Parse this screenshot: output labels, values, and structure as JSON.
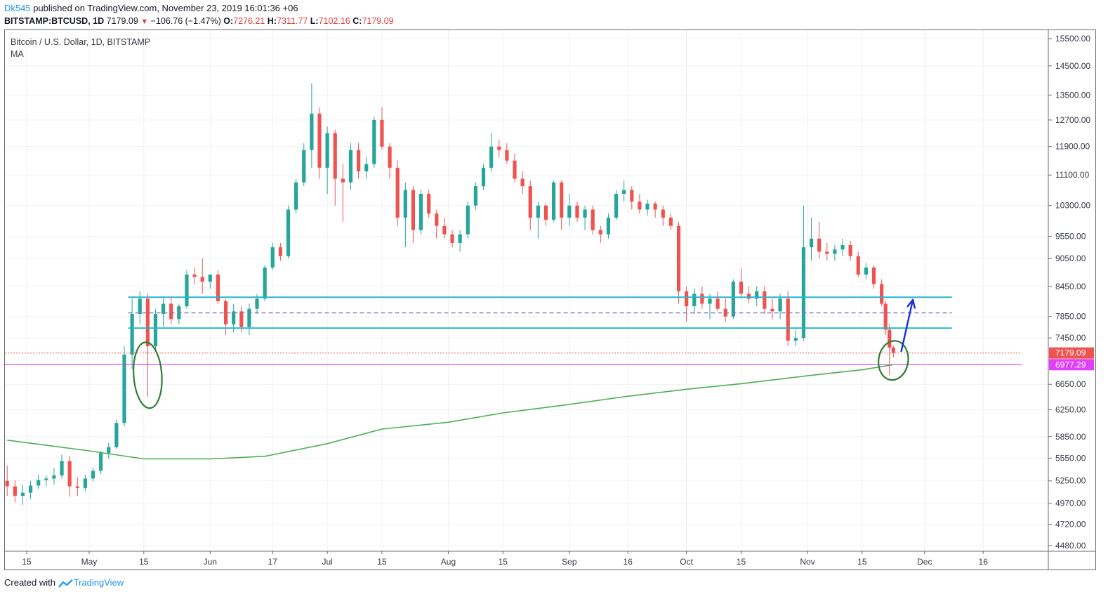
{
  "header": {
    "author": "Dk545",
    "published_text": " published on TradingView.com, November 23, 2019 16:01:36 +06",
    "symbol": "BITSTAMP:BTCUSD, 1D",
    "last": "7179.09",
    "change": "−106.76 (−1.47%)",
    "open_label": "O:",
    "open": "7276.21",
    "high_label": "H:",
    "high": "7311.77",
    "low_label": "L:",
    "low": "7102.16",
    "close_label": "C:",
    "close": "7179.09"
  },
  "legend": {
    "title": "Bitcoin / U.S. Dollar, 1D, BITSTAMP",
    "indicator": "MA"
  },
  "footer": {
    "created_with": "Created with",
    "brand": "TradingView"
  },
  "colors": {
    "up": "#26a69a",
    "down": "#ef5350",
    "ma": "#4caf50",
    "support": "#26b5c8",
    "pink": "#e040fb",
    "arrow": "#1a2de0",
    "circle": "#2e7d32"
  },
  "chart_data": {
    "type": "candlestick",
    "title": "Bitcoin / U.S. Dollar, 1D, BITSTAMP",
    "y_scale": "log",
    "ylim": [
      4400,
      15800
    ],
    "y_ticks": [
      "15500.00",
      "14500.00",
      "13500.00",
      "12700.00",
      "11900.00",
      "11100.00",
      "10300.00",
      "9550.00",
      "9050.00",
      "8450.00",
      "7850.00",
      "7450.00",
      "6650.00",
      "6250.00",
      "5850.00",
      "5550.00",
      "5250.00",
      "4970.00",
      "4720.00",
      "4480.00"
    ],
    "x_labels": [
      {
        "label": "15",
        "date": "2019-04-15"
      },
      {
        "label": "May",
        "date": "2019-05-01"
      },
      {
        "label": "15",
        "date": "2019-05-15"
      },
      {
        "label": "Jun",
        "date": "2019-06-01"
      },
      {
        "label": "17",
        "date": "2019-06-17"
      },
      {
        "label": "Jul",
        "date": "2019-07-01"
      },
      {
        "label": "15",
        "date": "2019-07-15"
      },
      {
        "label": "Aug",
        "date": "2019-08-01"
      },
      {
        "label": "15",
        "date": "2019-08-15"
      },
      {
        "label": "Sep",
        "date": "2019-09-01"
      },
      {
        "label": "16",
        "date": "2019-09-16"
      },
      {
        "label": "Oct",
        "date": "2019-10-01"
      },
      {
        "label": "15",
        "date": "2019-10-15"
      },
      {
        "label": "Nov",
        "date": "2019-11-01"
      },
      {
        "label": "15",
        "date": "2019-11-15"
      },
      {
        "label": "Dec",
        "date": "2019-12-01"
      },
      {
        "label": "16",
        "date": "2019-12-16"
      }
    ],
    "price_labels": [
      {
        "value": "7179.09",
        "color": "#ef5350"
      },
      {
        "value": "6977.29",
        "color": "#e040fb"
      }
    ],
    "horizontal_lines": [
      {
        "price": 8230,
        "style": "solid",
        "color": "#26b5c8",
        "from": "2019-05-11",
        "to": "2019-12-08"
      },
      {
        "price": 7630,
        "style": "solid",
        "color": "#26b5c8",
        "from": "2019-05-11",
        "to": "2019-12-08"
      },
      {
        "price": 7920,
        "style": "dashed",
        "color": "#7e72c8",
        "from": "2019-05-11",
        "to": "2019-12-08"
      },
      {
        "price": 7179.09,
        "style": "dotted",
        "color": "#ef5350",
        "from": "2019-04-10",
        "to": "2019-12-26"
      },
      {
        "price": 6977.29,
        "style": "solid",
        "color": "#e040fb",
        "from": "2019-04-10",
        "to": "2019-12-26"
      }
    ],
    "ma_series": [
      {
        "date": "2019-04-10",
        "value": 5800
      },
      {
        "date": "2019-05-01",
        "value": 5650
      },
      {
        "date": "2019-05-15",
        "value": 5540
      },
      {
        "date": "2019-06-01",
        "value": 5540
      },
      {
        "date": "2019-06-15",
        "value": 5575
      },
      {
        "date": "2019-07-01",
        "value": 5750
      },
      {
        "date": "2019-07-15",
        "value": 5960
      },
      {
        "date": "2019-08-01",
        "value": 6060
      },
      {
        "date": "2019-08-15",
        "value": 6200
      },
      {
        "date": "2019-09-01",
        "value": 6330
      },
      {
        "date": "2019-09-15",
        "value": 6450
      },
      {
        "date": "2019-10-01",
        "value": 6570
      },
      {
        "date": "2019-10-15",
        "value": 6660
      },
      {
        "date": "2019-11-01",
        "value": 6790
      },
      {
        "date": "2019-11-15",
        "value": 6890
      },
      {
        "date": "2019-11-23",
        "value": 6977
      }
    ],
    "annotations": [
      {
        "type": "ellipse",
        "center_date": "2019-05-16",
        "center_price": 6800,
        "color": "#2e7d32"
      },
      {
        "type": "ellipse",
        "center_date": "2019-11-23",
        "center_price": 7050,
        "color": "#2e7d32"
      },
      {
        "type": "arrow",
        "from_date": "2019-11-25",
        "from_price": 7200,
        "to_date": "2019-11-28",
        "to_price": 8180,
        "color": "#1a2de0"
      }
    ],
    "ohlc": [
      {
        "d": "2019-04-10",
        "o": 5250,
        "h": 5450,
        "l": 5060,
        "c": 5180
      },
      {
        "d": "2019-04-12",
        "o": 5180,
        "h": 5260,
        "l": 4980,
        "c": 5060
      },
      {
        "d": "2019-04-14",
        "o": 5060,
        "h": 5200,
        "l": 4950,
        "c": 5100
      },
      {
        "d": "2019-04-16",
        "o": 5100,
        "h": 5250,
        "l": 5020,
        "c": 5190
      },
      {
        "d": "2019-04-18",
        "o": 5190,
        "h": 5330,
        "l": 5150,
        "c": 5260
      },
      {
        "d": "2019-04-20",
        "o": 5260,
        "h": 5320,
        "l": 5180,
        "c": 5280
      },
      {
        "d": "2019-04-22",
        "o": 5280,
        "h": 5420,
        "l": 5200,
        "c": 5320
      },
      {
        "d": "2019-04-24",
        "o": 5320,
        "h": 5600,
        "l": 5280,
        "c": 5510
      },
      {
        "d": "2019-04-26",
        "o": 5510,
        "h": 5580,
        "l": 5050,
        "c": 5180
      },
      {
        "d": "2019-04-28",
        "o": 5180,
        "h": 5300,
        "l": 5060,
        "c": 5160
      },
      {
        "d": "2019-04-30",
        "o": 5160,
        "h": 5330,
        "l": 5120,
        "c": 5280
      },
      {
        "d": "2019-05-02",
        "o": 5280,
        "h": 5420,
        "l": 5240,
        "c": 5380
      },
      {
        "d": "2019-05-04",
        "o": 5380,
        "h": 5650,
        "l": 5340,
        "c": 5620
      },
      {
        "d": "2019-05-06",
        "o": 5620,
        "h": 5760,
        "l": 5540,
        "c": 5700
      },
      {
        "d": "2019-05-08",
        "o": 5700,
        "h": 6100,
        "l": 5680,
        "c": 6050
      },
      {
        "d": "2019-05-10",
        "o": 6050,
        "h": 7300,
        "l": 6000,
        "c": 7150
      },
      {
        "d": "2019-05-12",
        "o": 7150,
        "h": 8200,
        "l": 6900,
        "c": 7900
      },
      {
        "d": "2019-05-14",
        "o": 7900,
        "h": 8350,
        "l": 7700,
        "c": 8200
      },
      {
        "d": "2019-05-16",
        "o": 8200,
        "h": 8300,
        "l": 6450,
        "c": 7300
      },
      {
        "d": "2019-05-18",
        "o": 7300,
        "h": 8000,
        "l": 7200,
        "c": 7900
      },
      {
        "d": "2019-05-20",
        "o": 7900,
        "h": 8250,
        "l": 7650,
        "c": 8100
      },
      {
        "d": "2019-05-22",
        "o": 8100,
        "h": 8250,
        "l": 7700,
        "c": 7800
      },
      {
        "d": "2019-05-24",
        "o": 7800,
        "h": 8100,
        "l": 7700,
        "c": 8050
      },
      {
        "d": "2019-05-26",
        "o": 8050,
        "h": 8800,
        "l": 8000,
        "c": 8700
      },
      {
        "d": "2019-05-28",
        "o": 8700,
        "h": 8850,
        "l": 8500,
        "c": 8650
      },
      {
        "d": "2019-05-30",
        "o": 8650,
        "h": 9050,
        "l": 8300,
        "c": 8550
      },
      {
        "d": "2019-06-01",
        "o": 8550,
        "h": 8700,
        "l": 8400,
        "c": 8700
      },
      {
        "d": "2019-06-03",
        "o": 8700,
        "h": 8800,
        "l": 8100,
        "c": 8150
      },
      {
        "d": "2019-06-05",
        "o": 8150,
        "h": 8200,
        "l": 7500,
        "c": 7700
      },
      {
        "d": "2019-06-07",
        "o": 7700,
        "h": 8100,
        "l": 7550,
        "c": 7950
      },
      {
        "d": "2019-06-09",
        "o": 7950,
        "h": 8050,
        "l": 7550,
        "c": 7650
      },
      {
        "d": "2019-06-11",
        "o": 7650,
        "h": 8100,
        "l": 7500,
        "c": 8000
      },
      {
        "d": "2019-06-13",
        "o": 8000,
        "h": 8300,
        "l": 7900,
        "c": 8200
      },
      {
        "d": "2019-06-15",
        "o": 8200,
        "h": 8900,
        "l": 8150,
        "c": 8850
      },
      {
        "d": "2019-06-17",
        "o": 8850,
        "h": 9400,
        "l": 8800,
        "c": 9300
      },
      {
        "d": "2019-06-19",
        "o": 9300,
        "h": 9400,
        "l": 9000,
        "c": 9100
      },
      {
        "d": "2019-06-21",
        "o": 9100,
        "h": 10300,
        "l": 9050,
        "c": 10200
      },
      {
        "d": "2019-06-23",
        "o": 10200,
        "h": 11000,
        "l": 10100,
        "c": 10900
      },
      {
        "d": "2019-06-25",
        "o": 10900,
        "h": 12000,
        "l": 10800,
        "c": 11800
      },
      {
        "d": "2019-06-27",
        "o": 11800,
        "h": 13900,
        "l": 11300,
        "c": 12900
      },
      {
        "d": "2019-06-29",
        "o": 12900,
        "h": 13100,
        "l": 11000,
        "c": 11300
      },
      {
        "d": "2019-07-01",
        "o": 11300,
        "h": 12500,
        "l": 10600,
        "c": 12300
      },
      {
        "d": "2019-07-03",
        "o": 12300,
        "h": 12400,
        "l": 10300,
        "c": 11000
      },
      {
        "d": "2019-07-05",
        "o": 11000,
        "h": 11400,
        "l": 9900,
        "c": 10900
      },
      {
        "d": "2019-07-07",
        "o": 10900,
        "h": 12000,
        "l": 10700,
        "c": 11800
      },
      {
        "d": "2019-07-09",
        "o": 11800,
        "h": 12000,
        "l": 11000,
        "c": 11200
      },
      {
        "d": "2019-07-11",
        "o": 11200,
        "h": 11600,
        "l": 11000,
        "c": 11400
      },
      {
        "d": "2019-07-13",
        "o": 11400,
        "h": 12800,
        "l": 11300,
        "c": 12700
      },
      {
        "d": "2019-07-15",
        "o": 12700,
        "h": 13100,
        "l": 11800,
        "c": 11900
      },
      {
        "d": "2019-07-17",
        "o": 11900,
        "h": 12000,
        "l": 11000,
        "c": 11300
      },
      {
        "d": "2019-07-19",
        "o": 11300,
        "h": 11500,
        "l": 9800,
        "c": 10000
      },
      {
        "d": "2019-07-21",
        "o": 10000,
        "h": 10900,
        "l": 9300,
        "c": 10700
      },
      {
        "d": "2019-07-23",
        "o": 10700,
        "h": 10800,
        "l": 9400,
        "c": 9700
      },
      {
        "d": "2019-07-25",
        "o": 9700,
        "h": 10700,
        "l": 9600,
        "c": 10600
      },
      {
        "d": "2019-07-27",
        "o": 10600,
        "h": 10700,
        "l": 10000,
        "c": 10100
      },
      {
        "d": "2019-07-29",
        "o": 10100,
        "h": 10200,
        "l": 9500,
        "c": 9800
      },
      {
        "d": "2019-07-31",
        "o": 9800,
        "h": 10000,
        "l": 9500,
        "c": 9600
      },
      {
        "d": "2019-08-02",
        "o": 9600,
        "h": 9700,
        "l": 9300,
        "c": 9400
      },
      {
        "d": "2019-08-04",
        "o": 9400,
        "h": 9700,
        "l": 9200,
        "c": 9600
      },
      {
        "d": "2019-08-06",
        "o": 9600,
        "h": 10400,
        "l": 9500,
        "c": 10300
      },
      {
        "d": "2019-08-08",
        "o": 10300,
        "h": 10900,
        "l": 10200,
        "c": 10800
      },
      {
        "d": "2019-08-10",
        "o": 10800,
        "h": 11400,
        "l": 10700,
        "c": 11300
      },
      {
        "d": "2019-08-12",
        "o": 11300,
        "h": 12300,
        "l": 11200,
        "c": 11900
      },
      {
        "d": "2019-08-14",
        "o": 11900,
        "h": 12100,
        "l": 11600,
        "c": 11800
      },
      {
        "d": "2019-08-16",
        "o": 11800,
        "h": 12000,
        "l": 11400,
        "c": 11500
      },
      {
        "d": "2019-08-18",
        "o": 11500,
        "h": 11700,
        "l": 10900,
        "c": 11000
      },
      {
        "d": "2019-08-20",
        "o": 11000,
        "h": 11200,
        "l": 10600,
        "c": 10800
      },
      {
        "d": "2019-08-22",
        "o": 10800,
        "h": 10950,
        "l": 9700,
        "c": 10000
      },
      {
        "d": "2019-08-24",
        "o": 10000,
        "h": 10400,
        "l": 9500,
        "c": 10300
      },
      {
        "d": "2019-08-26",
        "o": 10300,
        "h": 10350,
        "l": 9800,
        "c": 9950
      },
      {
        "d": "2019-08-28",
        "o": 9950,
        "h": 10950,
        "l": 9900,
        "c": 10900
      },
      {
        "d": "2019-08-30",
        "o": 10900,
        "h": 10950,
        "l": 9700,
        "c": 10000
      },
      {
        "d": "2019-09-01",
        "o": 10000,
        "h": 10600,
        "l": 9800,
        "c": 10300
      },
      {
        "d": "2019-09-03",
        "o": 10300,
        "h": 10400,
        "l": 9900,
        "c": 10000
      },
      {
        "d": "2019-09-05",
        "o": 10000,
        "h": 10300,
        "l": 9700,
        "c": 10200
      },
      {
        "d": "2019-09-07",
        "o": 10200,
        "h": 10300,
        "l": 9600,
        "c": 9700
      },
      {
        "d": "2019-09-09",
        "o": 9700,
        "h": 9800,
        "l": 9400,
        "c": 9600
      },
      {
        "d": "2019-09-11",
        "o": 9600,
        "h": 10100,
        "l": 9500,
        "c": 10000
      },
      {
        "d": "2019-09-13",
        "o": 10000,
        "h": 10700,
        "l": 9950,
        "c": 10600
      },
      {
        "d": "2019-09-15",
        "o": 10600,
        "h": 10950,
        "l": 10400,
        "c": 10700
      },
      {
        "d": "2019-09-17",
        "o": 10700,
        "h": 10800,
        "l": 10200,
        "c": 10400
      },
      {
        "d": "2019-09-19",
        "o": 10400,
        "h": 10600,
        "l": 10100,
        "c": 10200
      },
      {
        "d": "2019-09-21",
        "o": 10200,
        "h": 10450,
        "l": 10050,
        "c": 10350
      },
      {
        "d": "2019-09-23",
        "o": 10350,
        "h": 10400,
        "l": 10000,
        "c": 10200
      },
      {
        "d": "2019-09-25",
        "o": 10200,
        "h": 10300,
        "l": 9800,
        "c": 10000
      },
      {
        "d": "2019-09-27",
        "o": 10000,
        "h": 10100,
        "l": 9700,
        "c": 9800
      },
      {
        "d": "2019-09-29",
        "o": 9800,
        "h": 9900,
        "l": 8100,
        "c": 8350
      },
      {
        "d": "2019-10-01",
        "o": 8350,
        "h": 8450,
        "l": 7750,
        "c": 8050
      },
      {
        "d": "2019-10-03",
        "o": 8050,
        "h": 8400,
        "l": 7900,
        "c": 8300
      },
      {
        "d": "2019-10-05",
        "o": 8300,
        "h": 8450,
        "l": 8000,
        "c": 8100
      },
      {
        "d": "2019-10-07",
        "o": 8100,
        "h": 8300,
        "l": 7800,
        "c": 8200
      },
      {
        "d": "2019-10-09",
        "o": 8200,
        "h": 8350,
        "l": 7950,
        "c": 8000
      },
      {
        "d": "2019-10-11",
        "o": 8000,
        "h": 8200,
        "l": 7750,
        "c": 7850
      },
      {
        "d": "2019-10-13",
        "o": 7850,
        "h": 8600,
        "l": 7800,
        "c": 8550
      },
      {
        "d": "2019-10-15",
        "o": 8550,
        "h": 8850,
        "l": 8200,
        "c": 8300
      },
      {
        "d": "2019-10-17",
        "o": 8300,
        "h": 8450,
        "l": 8100,
        "c": 8200
      },
      {
        "d": "2019-10-19",
        "o": 8200,
        "h": 8450,
        "l": 8050,
        "c": 8350
      },
      {
        "d": "2019-10-21",
        "o": 8350,
        "h": 8450,
        "l": 7900,
        "c": 8000
      },
      {
        "d": "2019-10-23",
        "o": 8000,
        "h": 8200,
        "l": 7800,
        "c": 7950
      },
      {
        "d": "2019-10-25",
        "o": 7950,
        "h": 8300,
        "l": 7800,
        "c": 8200
      },
      {
        "d": "2019-10-27",
        "o": 8200,
        "h": 8350,
        "l": 7300,
        "c": 7400
      },
      {
        "d": "2019-10-29",
        "o": 7400,
        "h": 7600,
        "l": 7300,
        "c": 7450
      },
      {
        "d": "2019-10-31",
        "o": 7450,
        "h": 10300,
        "l": 7400,
        "c": 9300
      },
      {
        "d": "2019-11-02",
        "o": 9300,
        "h": 10000,
        "l": 9000,
        "c": 9500
      },
      {
        "d": "2019-11-04",
        "o": 9500,
        "h": 9900,
        "l": 9050,
        "c": 9200
      },
      {
        "d": "2019-11-06",
        "o": 9200,
        "h": 9400,
        "l": 9000,
        "c": 9150
      },
      {
        "d": "2019-11-08",
        "o": 9150,
        "h": 9350,
        "l": 9000,
        "c": 9250
      },
      {
        "d": "2019-11-10",
        "o": 9250,
        "h": 9500,
        "l": 9100,
        "c": 9350
      },
      {
        "d": "2019-11-12",
        "o": 9350,
        "h": 9450,
        "l": 9000,
        "c": 9100
      },
      {
        "d": "2019-11-14",
        "o": 9100,
        "h": 9200,
        "l": 8650,
        "c": 8700
      },
      {
        "d": "2019-11-16",
        "o": 8700,
        "h": 8950,
        "l": 8600,
        "c": 8850
      },
      {
        "d": "2019-11-18",
        "o": 8850,
        "h": 8900,
        "l": 8400,
        "c": 8500
      },
      {
        "d": "2019-11-20",
        "o": 8500,
        "h": 8600,
        "l": 8050,
        "c": 8100
      },
      {
        "d": "2019-11-21",
        "o": 8100,
        "h": 8150,
        "l": 7500,
        "c": 7600
      },
      {
        "d": "2019-11-22",
        "o": 7600,
        "h": 7700,
        "l": 6800,
        "c": 7276
      },
      {
        "d": "2019-11-23",
        "o": 7276.21,
        "h": 7311.77,
        "l": 7102.16,
        "c": 7179.09
      }
    ]
  }
}
